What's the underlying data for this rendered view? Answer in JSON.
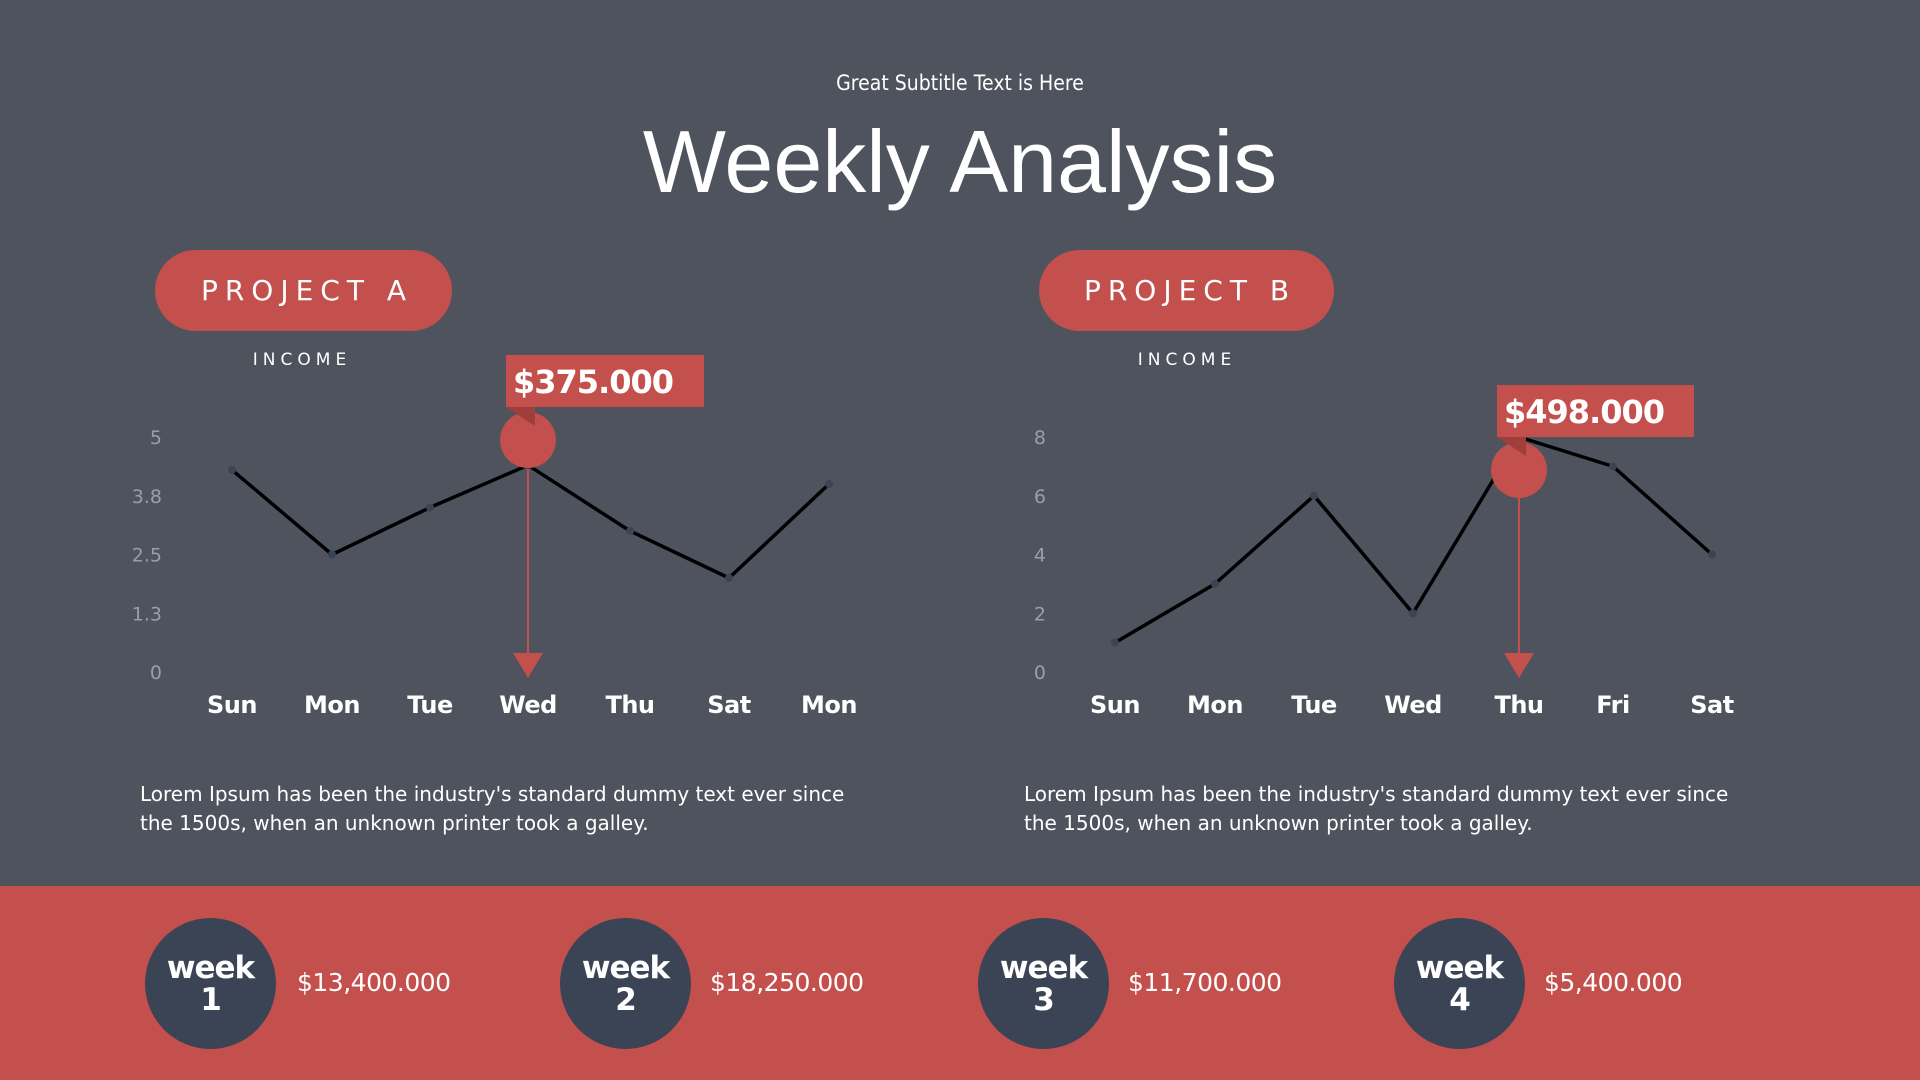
{
  "header": {
    "subtitle": "Great Subtitle Text is Here",
    "title": "Weekly Analysis"
  },
  "colors": {
    "background": "#4e535d",
    "accent": "#c4504d",
    "accent_dark": "#9e3f3c",
    "dark_circle": "#3b4455",
    "line": "#000000",
    "axis_label": "#9a9ea5",
    "text": "#ffffff"
  },
  "projects": [
    {
      "label": "PROJECT A",
      "metric_label": "INCOME",
      "callout": "$375.000",
      "description_line1": "Lorem Ipsum has been the industry's standard dummy text ever since",
      "description_line2": "the 1500s, when an unknown printer took a galley."
    },
    {
      "label": "PROJECT B",
      "metric_label": "INCOME",
      "callout": "$498.000",
      "description_line1": "Lorem Ipsum has been the industry's standard dummy text ever since",
      "description_line2": "the 1500s, when an unknown printer took a galley."
    }
  ],
  "weeks": [
    {
      "word": "week",
      "number": "1",
      "amount": "$13,400.000"
    },
    {
      "word": "week",
      "number": "2",
      "amount": "$18,250.000"
    },
    {
      "word": "week",
      "number": "3",
      "amount": "$11,700.000"
    },
    {
      "word": "week",
      "number": "4",
      "amount": "$5,400.000"
    }
  ],
  "chart_data": [
    {
      "type": "line",
      "title": "PROJECT A — INCOME",
      "xlabel": "",
      "ylabel": "",
      "categories": [
        "Sun",
        "Mon",
        "Tue",
        "Wed",
        "Thu",
        "Sat",
        "Mon"
      ],
      "values": [
        4.3,
        2.5,
        3.5,
        4.4,
        3.0,
        2.0,
        4.0
      ],
      "yticks": [
        "0",
        "1.3",
        "2.5",
        "3.8",
        "5"
      ],
      "ylim": [
        0,
        5
      ],
      "grid": false,
      "highlight": {
        "index": 3,
        "label": "$375.000"
      }
    },
    {
      "type": "line",
      "title": "PROJECT B — INCOME",
      "xlabel": "",
      "ylabel": "",
      "categories": [
        "Sun",
        "Mon",
        "Tue",
        "Wed",
        "Thu",
        "Fri",
        "Sat"
      ],
      "values": [
        1,
        3,
        6,
        2,
        8,
        7,
        4
      ],
      "yticks": [
        "0",
        "2",
        "4",
        "6",
        "8"
      ],
      "ylim": [
        0,
        8
      ],
      "grid": false,
      "highlight": {
        "index": 4,
        "label": "$498.000"
      }
    }
  ]
}
